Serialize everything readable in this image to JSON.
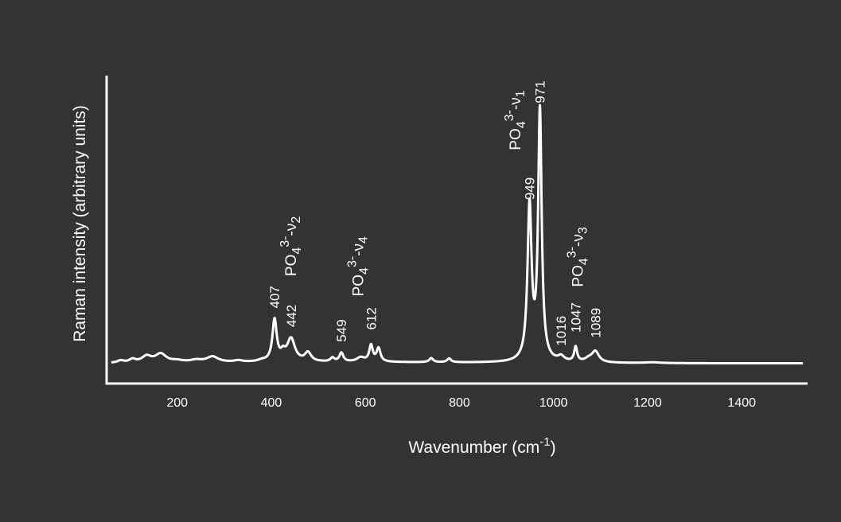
{
  "chart_data": {
    "type": "line",
    "title": "",
    "xlabel": {
      "main": "Wavenumber (cm",
      "sup": "-1",
      "end": ")"
    },
    "ylabel": "Raman intensity (arbitrary units)",
    "xlim": [
      50,
      1540
    ],
    "ylim": [
      0,
      100
    ],
    "x_ticks": [
      200,
      400,
      600,
      800,
      1000,
      1200,
      1400
    ],
    "x_tick_labels": [
      "200",
      "400",
      "600",
      "800",
      "1000",
      "1200",
      "1400"
    ],
    "y_ticks_shown": false,
    "grid": false,
    "legend": "none",
    "colors": {
      "background": "#333333",
      "line": "#ffffff",
      "axis": "#ffffff"
    },
    "baseline": 1,
    "peaks": [
      {
        "x": 80,
        "y": 0.8,
        "w": 8
      },
      {
        "x": 105,
        "y": 1.2,
        "w": 8
      },
      {
        "x": 135,
        "y": 2.3,
        "w": 12
      },
      {
        "x": 165,
        "y": 3.2,
        "w": 14
      },
      {
        "x": 200,
        "y": 0.6,
        "w": 15
      },
      {
        "x": 240,
        "y": 0.8,
        "w": 15
      },
      {
        "x": 275,
        "y": 2.1,
        "w": 15
      },
      {
        "x": 330,
        "y": 0.6,
        "w": 10
      },
      {
        "x": 380,
        "y": 0.5,
        "w": 10
      },
      {
        "x": 407,
        "y": 15.5,
        "w": 5.5
      },
      {
        "x": 425,
        "y": 2.5,
        "w": 6
      },
      {
        "x": 442,
        "y": 8.5,
        "w": 10
      },
      {
        "x": 478,
        "y": 3.3,
        "w": 8
      },
      {
        "x": 530,
        "y": 1.4,
        "w": 5
      },
      {
        "x": 549,
        "y": 3.3,
        "w": 5
      },
      {
        "x": 590,
        "y": 1.6,
        "w": 10
      },
      {
        "x": 612,
        "y": 6.0,
        "w": 4.5
      },
      {
        "x": 628,
        "y": 5.0,
        "w": 5
      },
      {
        "x": 740,
        "y": 1.5,
        "w": 5
      },
      {
        "x": 778,
        "y": 1.4,
        "w": 5
      },
      {
        "x": 949,
        "y": 57.5,
        "w": 5.2
      },
      {
        "x": 971,
        "y": 93.0,
        "w": 4.5
      },
      {
        "x": 1016,
        "y": 1.8,
        "w": 8
      },
      {
        "x": 1047,
        "y": 5.5,
        "w": 3.8
      },
      {
        "x": 1089,
        "y": 4.0,
        "w": 9
      },
      {
        "x": 1075,
        "y": 1.2,
        "w": 10
      },
      {
        "x": 1210,
        "y": 0.3,
        "w": 20
      }
    ],
    "peak_labels": [
      {
        "x": 407,
        "y": 21.5,
        "text": "407"
      },
      {
        "x": 442,
        "y": 14.5,
        "text": "442"
      },
      {
        "x": 549,
        "y": 9.0,
        "text": "549"
      },
      {
        "x": 612,
        "y": 13.5,
        "text": "612"
      },
      {
        "x": 949,
        "y": 62.0,
        "text": "949"
      },
      {
        "x": 971,
        "y": 98.0,
        "text": "971"
      },
      {
        "x": 1016,
        "y": 7.5,
        "text": "1016"
      },
      {
        "x": 1047,
        "y": 12.5,
        "text": "1047"
      },
      {
        "x": 1089,
        "y": 10.5,
        "text": "1089"
      }
    ],
    "band_labels": [
      {
        "x": 441,
        "y": 33.5,
        "main": "PO",
        "sub": "4",
        "sup": "3-",
        "end": "-ν",
        "sub2": "2"
      },
      {
        "x": 584,
        "y": 26.0,
        "main": "PO",
        "sub": "4",
        "sup": "3-",
        "end": "-ν",
        "sub2": "4"
      },
      {
        "x": 918,
        "y": 80.5,
        "main": "PO",
        "sub": "4",
        "sup": "3-",
        "end": "-ν",
        "sub2": "1"
      },
      {
        "x": 1050,
        "y": 29.5,
        "main": "PO",
        "sub": "4",
        "sup": "3-",
        "end": "-ν",
        "sub2": "3"
      }
    ]
  }
}
